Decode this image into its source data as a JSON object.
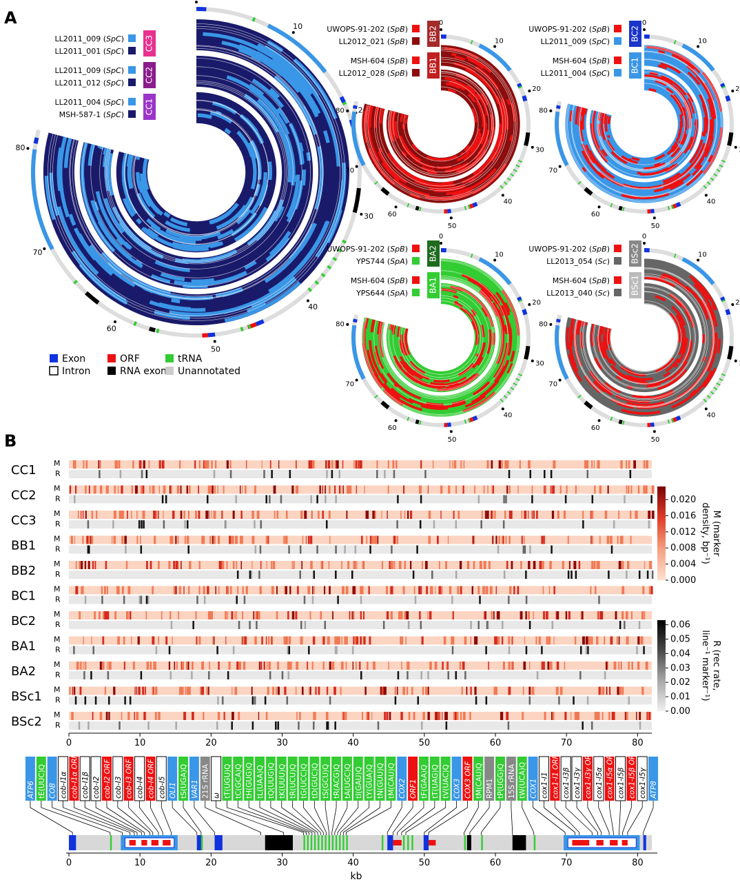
{
  "panels": {
    "A": "A",
    "B": "B"
  },
  "circles": [
    {
      "id": "C",
      "outer_ticks": [
        "0",
        "10",
        "20",
        "30",
        "40",
        "50",
        "60",
        "70",
        "80"
      ],
      "crosses": [
        {
          "code": "CC3",
          "code_color": "#e8308f",
          "parents": [
            {
              "name": "LL2011_009",
              "sp": "SpC",
              "color": "#3a96e6"
            },
            {
              "name": "LL2011_001",
              "sp": "SpC",
              "color": "#1a1a6b"
            }
          ]
        },
        {
          "code": "CC2",
          "code_color": "#8a1c8c",
          "parents": [
            {
              "name": "LL2011_009",
              "sp": "SpC",
              "color": "#3a96e6"
            },
            {
              "name": "LL2011_012",
              "sp": "SpC",
              "color": "#1a1a6b"
            }
          ]
        },
        {
          "code": "CC1",
          "code_color": "#9b35c9",
          "parents": [
            {
              "name": "LL2011_004",
              "sp": "SpC",
              "color": "#3a96e6"
            },
            {
              "name": "MSH-587-1",
              "sp": "SpC",
              "color": "#1a1a6b"
            }
          ]
        }
      ]
    },
    {
      "id": "BB",
      "outer_ticks": [
        "0",
        "10",
        "20",
        "30",
        "40",
        "50",
        "60",
        "70",
        "80"
      ],
      "crosses": [
        {
          "code": "BB2",
          "code_color": "#a52a2a",
          "parents": [
            {
              "name": "UWOPS-91-202",
              "sp": "SpB",
              "color": "#ee1111"
            },
            {
              "name": "LL2012_021",
              "sp": "SpB",
              "color": "#8b0d0d"
            }
          ]
        },
        {
          "code": "BB1",
          "code_color": "#c02020",
          "parents": [
            {
              "name": "MSH-604",
              "sp": "SpB",
              "color": "#ee1111"
            },
            {
              "name": "LL2012_028",
              "sp": "SpB",
              "color": "#8b0d0d"
            }
          ]
        }
      ]
    },
    {
      "id": "BC",
      "outer_ticks": [
        "0",
        "10",
        "20",
        "30",
        "40",
        "50",
        "60",
        "70",
        "80"
      ],
      "crosses": [
        {
          "code": "BC2",
          "code_color": "#1b35c9",
          "parents": [
            {
              "name": "UWOPS-91-202",
              "sp": "SpB",
              "color": "#ee1111"
            },
            {
              "name": "LL2011_009",
              "sp": "SpC",
              "color": "#3a96e6"
            }
          ]
        },
        {
          "code": "BC1",
          "code_color": "#3a96e6",
          "parents": [
            {
              "name": "MSH-604",
              "sp": "SpB",
              "color": "#ee1111"
            },
            {
              "name": "LL2011_004",
              "sp": "SpC",
              "color": "#3a96e6"
            }
          ]
        }
      ]
    },
    {
      "id": "BA",
      "outer_ticks": [
        "0",
        "10",
        "20",
        "30",
        "40",
        "50",
        "60",
        "70",
        "80"
      ],
      "crosses": [
        {
          "code": "BA2",
          "code_color": "#1e6b1e",
          "parents": [
            {
              "name": "UWOPS-91-202",
              "sp": "SpB",
              "color": "#ee1111"
            },
            {
              "name": "YPS744",
              "sp": "SpA",
              "color": "#33cc33"
            }
          ]
        },
        {
          "code": "BA1",
          "code_color": "#33cc33",
          "parents": [
            {
              "name": "MSH-604",
              "sp": "SpB",
              "color": "#ee1111"
            },
            {
              "name": "YPS644",
              "sp": "SpA",
              "color": "#33cc33"
            }
          ]
        }
      ]
    },
    {
      "id": "BS",
      "outer_ticks": [
        "0",
        "10",
        "20",
        "30",
        "40",
        "50",
        "60",
        "70",
        "80"
      ],
      "crosses": [
        {
          "code": "BSc2",
          "code_color": "#888888",
          "parents": [
            {
              "name": "UWOPS-91-202",
              "sp": "SpB",
              "color": "#ee1111"
            },
            {
              "name": "LL2013_054",
              "sp": "Sc",
              "color": "#666666"
            }
          ]
        },
        {
          "code": "BSc1",
          "code_color": "#bbbbbb",
          "parents": [
            {
              "name": "MSH-604",
              "sp": "SpB",
              "color": "#ee1111"
            },
            {
              "name": "LL2013_040",
              "sp": "Sc",
              "color": "#666666"
            }
          ]
        }
      ]
    }
  ],
  "legend": [
    {
      "label": "Exon",
      "kind": "fill",
      "color": "#1133dd"
    },
    {
      "label": "Intron",
      "kind": "outline",
      "color": "#000000"
    },
    {
      "label": "ORF",
      "kind": "fill",
      "color": "#ee1111"
    },
    {
      "label": "RNA exon",
      "kind": "fill",
      "color": "#000000"
    },
    {
      "label": "tRNA",
      "kind": "fill",
      "color": "#33cc33"
    },
    {
      "label": "Unannotated",
      "kind": "fill",
      "color": "#cccccc"
    }
  ],
  "tracks": {
    "rows": [
      "CC1",
      "CC2",
      "CC3",
      "BB1",
      "BB2",
      "BC1",
      "BC2",
      "BA1",
      "BA2",
      "BSc1",
      "BSc2"
    ],
    "sub_labels": {
      "M": "M",
      "R": "R"
    },
    "x_ticks": [
      "0",
      "10",
      "20",
      "30",
      "40",
      "50",
      "60",
      "70",
      "80"
    ],
    "x_max": 82
  },
  "colorbars": [
    {
      "id": "M",
      "ticks": [
        "0.000",
        "0.004",
        "0.008",
        "0.012",
        "0.016",
        "0.020"
      ],
      "label_line1": "M (marker",
      "label_line2": "density, bp⁻¹)"
    },
    {
      "id": "R",
      "ticks": [
        "0.00",
        "0.01",
        "0.02",
        "0.03",
        "0.04",
        "0.05",
        "0.06"
      ],
      "label_line1": "R (rec rate,",
      "label_line2": "line⁻¹ marker⁻¹)"
    }
  ],
  "gene_labels": [
    {
      "text": "ATP6",
      "type": "exon",
      "pos": 0.5
    },
    {
      "text": "tE(UUC)Q",
      "type": "trna",
      "pos": 5.8
    },
    {
      "text": "COB",
      "type": "exon",
      "pos": 7.5
    },
    {
      "text": "cob-I1α",
      "type": "intron",
      "pos": 8.6
    },
    {
      "text": "cob-I1α ORF",
      "type": "orf",
      "pos": 9.2
    },
    {
      "text": "cob-I1β",
      "type": "intron",
      "pos": 9.6
    },
    {
      "text": "cob-I2",
      "type": "intron",
      "pos": 10.2
    },
    {
      "text": "cob-I2 ORF",
      "type": "orf",
      "pos": 10.6
    },
    {
      "text": "cob-I3",
      "type": "intron",
      "pos": 11.4
    },
    {
      "text": "cob-I3 ORF",
      "type": "orf",
      "pos": 11.8
    },
    {
      "text": "cob-I4",
      "type": "intron",
      "pos": 12.6
    },
    {
      "text": "cob-I4 ORF",
      "type": "orf",
      "pos": 13.2
    },
    {
      "text": "cob-I5",
      "type": "intron",
      "pos": 14.4
    },
    {
      "text": "OLI1",
      "type": "exon",
      "pos": 18.0
    },
    {
      "text": "tS(UGA)Q",
      "type": "trna",
      "pos": 18.6
    },
    {
      "text": "VAR1",
      "type": "exon",
      "pos": 20.5
    },
    {
      "text": "21S rRNA",
      "type": "rna",
      "pos": 27.0
    },
    {
      "text": "ω",
      "type": "intron",
      "pos": 30.2
    },
    {
      "text": "tT(UGU)Q",
      "type": "trna",
      "pos": 33.0
    },
    {
      "text": "tC(GCA)Q",
      "type": "trna",
      "pos": 33.4
    },
    {
      "text": "tH(GUG)Q",
      "type": "trna",
      "pos": 33.8
    },
    {
      "text": "tL(UAA)Q",
      "type": "trna",
      "pos": 34.2
    },
    {
      "text": "tQ(UUG)Q",
      "type": "trna",
      "pos": 34.6
    },
    {
      "text": "tK(UUU)Q",
      "type": "trna",
      "pos": 35.0
    },
    {
      "text": "tR(UCU)Q",
      "type": "trna",
      "pos": 35.4
    },
    {
      "text": "tG(UCC)Q",
      "type": "trna",
      "pos": 35.8
    },
    {
      "text": "tD(GUC)Q",
      "type": "trna",
      "pos": 36.2
    },
    {
      "text": "tS(GCU)Q",
      "type": "trna",
      "pos": 36.6
    },
    {
      "text": "tR(ACG)Q",
      "type": "trna",
      "pos": 37.0
    },
    {
      "text": "tA(UGC)Q",
      "type": "trna",
      "pos": 37.4
    },
    {
      "text": "tI(GAU)Q",
      "type": "trna",
      "pos": 37.8
    },
    {
      "text": "tY(GUA)Q",
      "type": "trna",
      "pos": 38.2
    },
    {
      "text": "tN(GUU)Q",
      "type": "trna",
      "pos": 38.6
    },
    {
      "text": "tM(CAU)Q",
      "type": "trna",
      "pos": 39.0
    },
    {
      "text": "COX2",
      "type": "exon",
      "pos": 44.8
    },
    {
      "text": "ORF1",
      "type": "orf",
      "pos": 45.6
    },
    {
      "text": "tF(GAA)Q",
      "type": "trna",
      "pos": 46.2
    },
    {
      "text": "tT(UAG)Q",
      "type": "trna",
      "pos": 46.8
    },
    {
      "text": "tV(UAC)Q",
      "type": "trna",
      "pos": 47.4
    },
    {
      "text": "COX3",
      "type": "exon",
      "pos": 50.0
    },
    {
      "text": "COX3 ORF",
      "type": "orf",
      "pos": 50.6
    },
    {
      "text": "tM(CAU)Q",
      "type": "trna",
      "pos": 55.6
    },
    {
      "text": "RPM1",
      "type": "rna",
      "pos": 56.4
    },
    {
      "text": "tP(UGG)Q",
      "type": "trna",
      "pos": 58.0
    },
    {
      "text": "15S rRNA",
      "type": "rna",
      "pos": 62.4
    },
    {
      "text": "tW(UCA)Q",
      "type": "trna",
      "pos": 65.4
    },
    {
      "text": "COX1",
      "type": "exon",
      "pos": 69.8
    },
    {
      "text": "cox1-I1",
      "type": "intron",
      "pos": 71.2
    },
    {
      "text": "cox1-I1 ORF",
      "type": "orf",
      "pos": 71.8
    },
    {
      "text": "cox1-I3β",
      "type": "intron",
      "pos": 73.6
    },
    {
      "text": "cox1-I3γ",
      "type": "intron",
      "pos": 74.4
    },
    {
      "text": "cox1-I3γ ORF",
      "type": "orf",
      "pos": 74.9
    },
    {
      "text": "cox1-I5α",
      "type": "intron",
      "pos": 76.0
    },
    {
      "text": "cox1-I5α ORF",
      "type": "orf",
      "pos": 76.6
    },
    {
      "text": "cox1-I5β",
      "type": "intron",
      "pos": 77.4
    },
    {
      "text": "cox1-I5β ORF",
      "type": "orf",
      "pos": 77.9
    },
    {
      "text": "cox1-I5γ",
      "type": "intron",
      "pos": 78.6
    },
    {
      "text": "ATP8",
      "type": "exon",
      "pos": 80.8
    }
  ],
  "gene_colors": {
    "exon": "#3a96e6",
    "trna": "#33cc33",
    "orf": "#ee1111",
    "rna": "#888888",
    "intron": "#ffffff"
  },
  "genome_axis": {
    "ticks": [
      "0",
      "10",
      "20",
      "30",
      "40",
      "50",
      "60",
      "70",
      "80"
    ],
    "label": "kb"
  }
}
